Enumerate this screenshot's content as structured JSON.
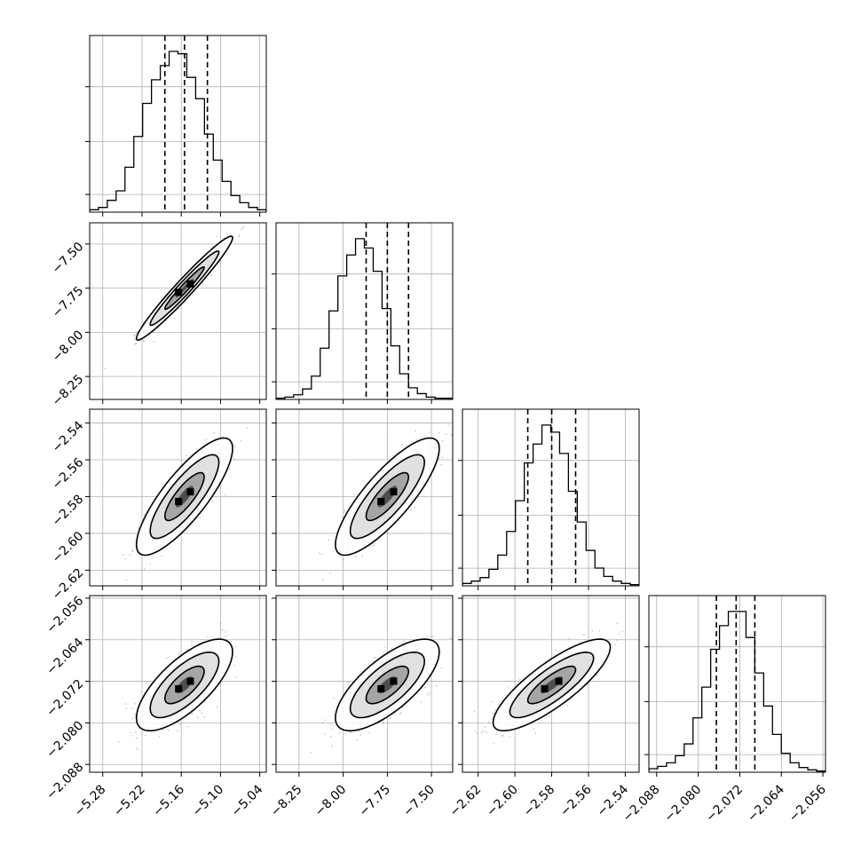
{
  "chart_data": {
    "type": "corner",
    "parameters": [
      {
        "range": [
          -5.3,
          -5.03
        ],
        "ticks": [
          "−5.28",
          "−5.22",
          "−5.16",
          "−5.10",
          "−5.04"
        ],
        "tick_values": [
          -5.28,
          -5.22,
          -5.16,
          -5.1,
          -5.04
        ],
        "quantiles": [
          -5.185,
          -5.155,
          -5.12
        ],
        "mean": -5.155,
        "sd": 0.03
      },
      {
        "range": [
          -8.38,
          -7.38
        ],
        "ticks": [
          "−8.25",
          "−8.00",
          "−7.75",
          "−7.50"
        ],
        "tick_values": [
          -8.25,
          -8.0,
          -7.75,
          -7.5
        ],
        "quantiles": [
          -7.87,
          -7.75,
          -7.63
        ],
        "mean": -7.75,
        "sd": 0.12
      },
      {
        "range": [
          -2.6285,
          -2.5325
        ],
        "ticks": [
          "−2.62",
          "−2.60",
          "−2.58",
          "−2.56",
          "−2.54"
        ],
        "tick_values": [
          -2.62,
          -2.6,
          -2.58,
          -2.56,
          -2.54
        ],
        "quantiles": [
          -2.593,
          -2.58,
          -2.567
        ],
        "mean": -2.58,
        "sd": 0.013
      },
      {
        "range": [
          -2.0895,
          -2.0555
        ],
        "ticks": [
          "−2.088",
          "−2.080",
          "−2.072",
          "−2.064",
          "−2.056"
        ],
        "tick_values": [
          -2.088,
          -2.08,
          -2.072,
          -2.064,
          -2.056
        ],
        "quantiles": [
          -2.0765,
          -2.0727,
          -2.0691
        ],
        "mean": -2.0727,
        "sd": 0.0036
      }
    ],
    "correlations": {
      "1-0": 0.97,
      "2-0": 0.82,
      "2-1": 0.82,
      "3-0": 0.72,
      "3-1": 0.72,
      "3-2": 0.82
    },
    "histograms": [
      [
        2,
        4,
        10,
        18,
        38,
        64,
        92,
        112,
        124,
        136,
        134,
        114,
        96,
        66,
        44,
        26,
        14,
        8,
        4,
        2
      ],
      [
        1,
        2,
        4,
        9,
        20,
        44,
        76,
        106,
        124,
        138,
        130,
        110,
        78,
        46,
        22,
        10,
        5,
        2,
        1,
        1
      ],
      [
        2,
        4,
        7,
        14,
        26,
        46,
        72,
        104,
        120,
        136,
        130,
        112,
        80,
        54,
        30,
        15,
        8,
        4,
        2,
        1
      ],
      [
        3,
        5,
        8,
        14,
        24,
        46,
        72,
        104,
        124,
        136,
        136,
        114,
        84,
        56,
        32,
        16,
        8,
        4,
        2,
        1
      ]
    ],
    "grid": true,
    "quantile_lines": "dashed",
    "contour_levels": 3
  }
}
